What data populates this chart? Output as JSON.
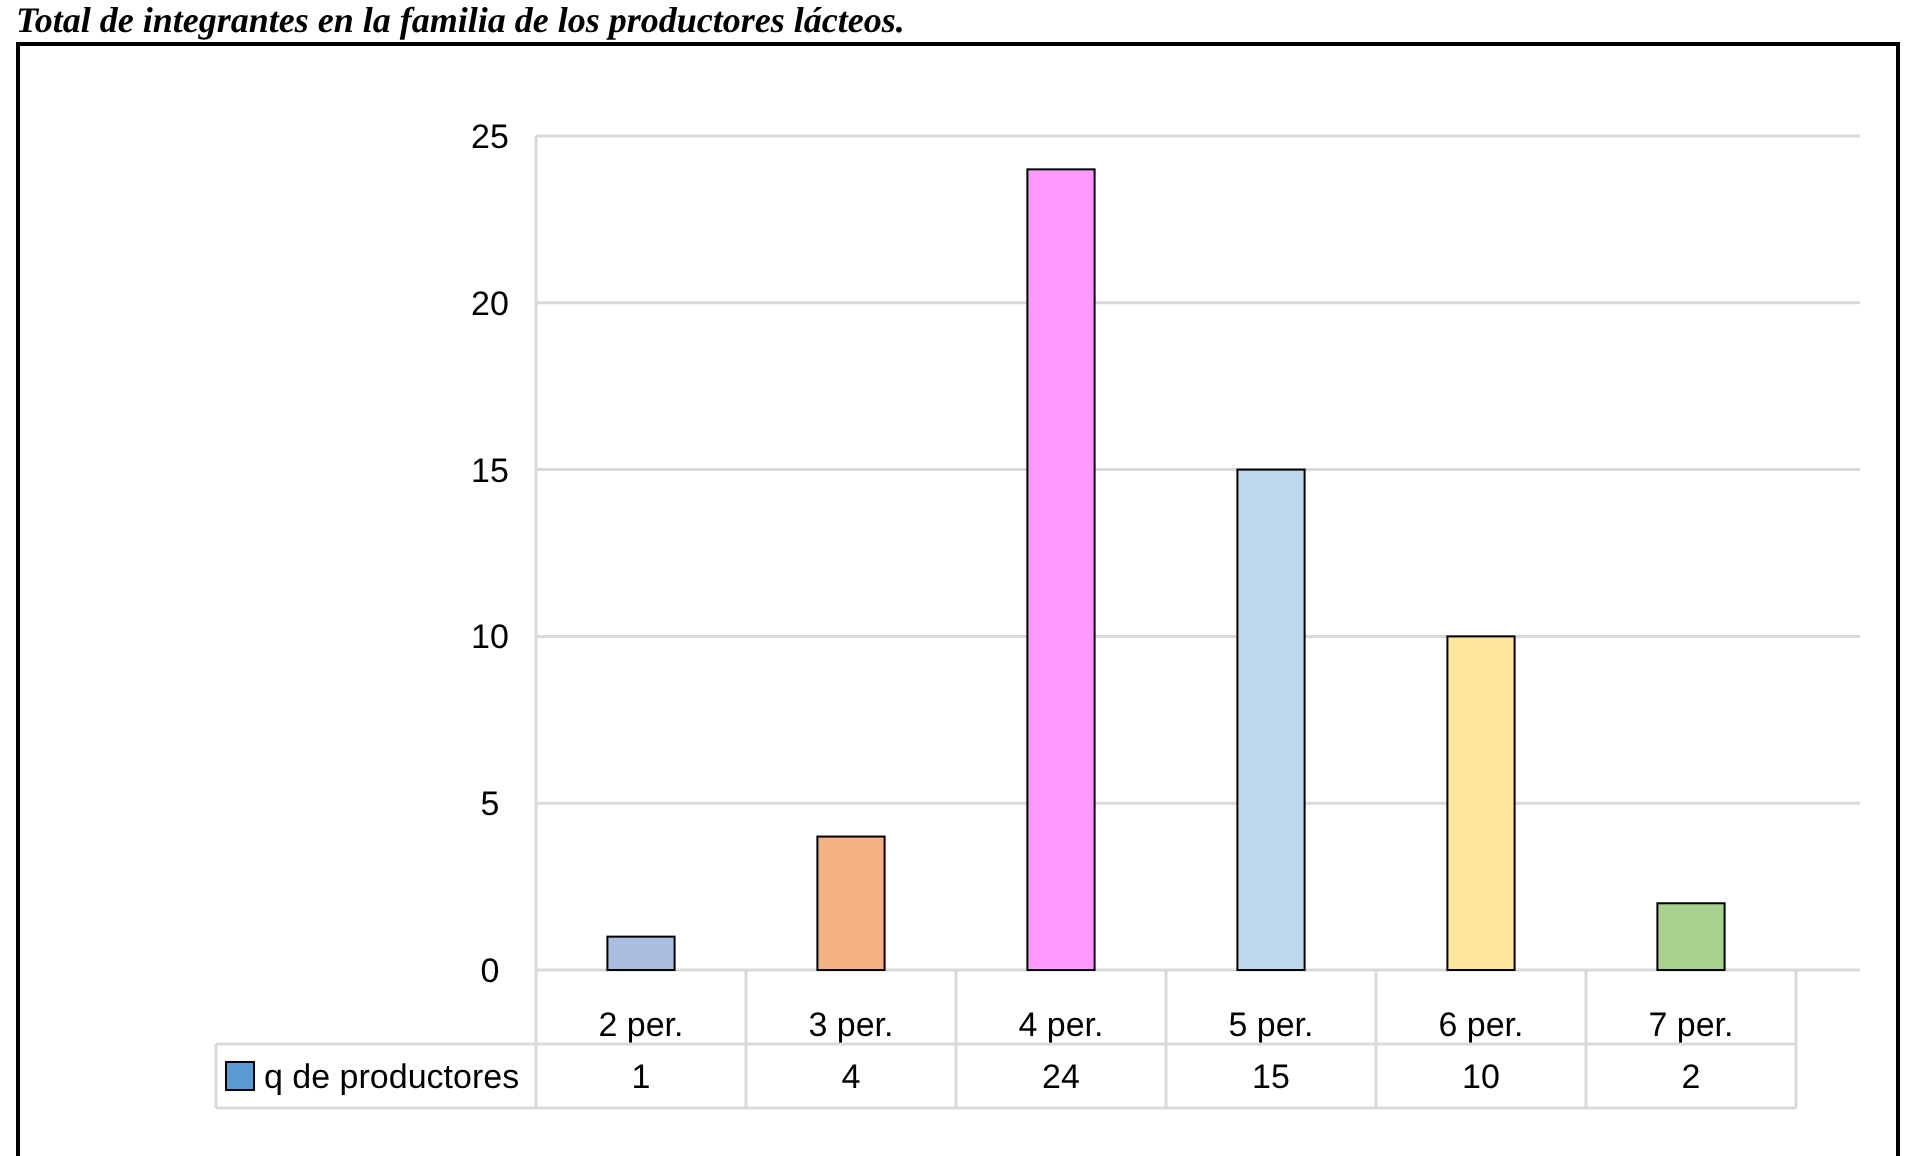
{
  "chart_data": {
    "type": "bar",
    "title": "Total de integrantes en la familia de los productores lácteos.",
    "categories": [
      "2 per.",
      "3 per.",
      "4 per.",
      "5 per.",
      "6 per.",
      "7 per."
    ],
    "series": [
      {
        "name": "q de productores",
        "color": "#5b9bd5",
        "colors": [
          "#a9bde0",
          "#f4b183",
          "#ff99ff",
          "#bdd7ee",
          "#ffe699",
          "#a9d18e"
        ],
        "values": [
          1,
          4,
          24,
          15,
          10,
          2
        ]
      }
    ],
    "ylim": [
      0,
      25
    ],
    "yticks": [
      0,
      5,
      10,
      15,
      20,
      25
    ],
    "grid": "y",
    "legend": "bottom",
    "data_labels": true
  }
}
